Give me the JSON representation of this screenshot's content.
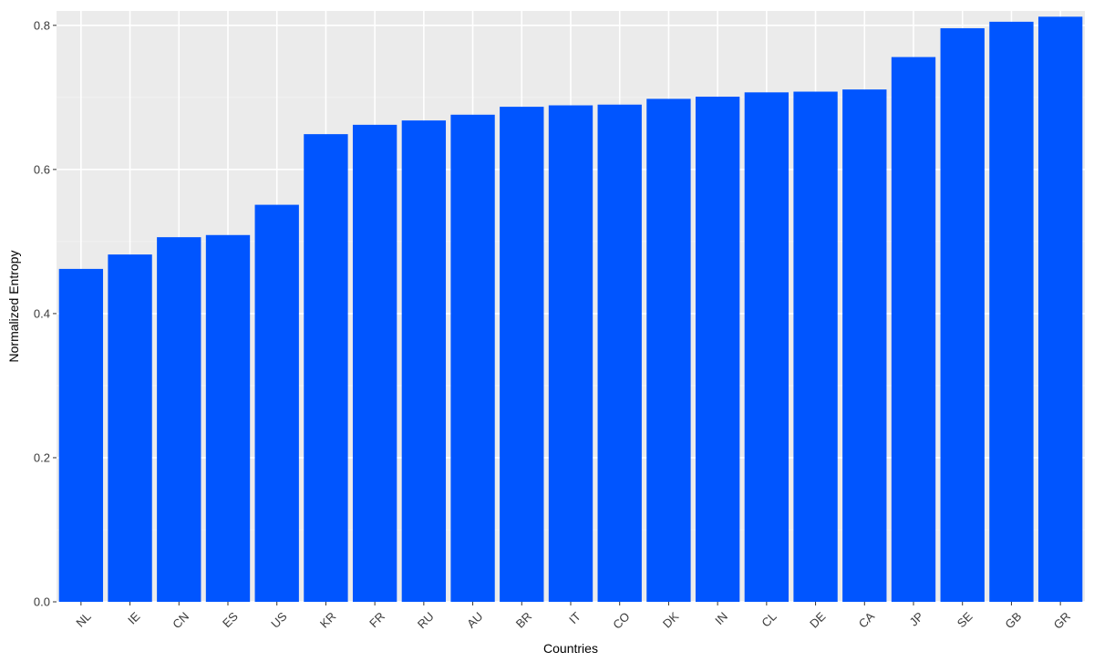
{
  "chart_data": {
    "type": "bar",
    "title": "",
    "xlabel": "Countries",
    "ylabel": "Normalized Entropy",
    "categories": [
      "NL",
      "IE",
      "CN",
      "ES",
      "US",
      "KR",
      "FR",
      "RU",
      "AU",
      "BR",
      "IT",
      "CO",
      "DK",
      "IN",
      "CL",
      "DE",
      "CA",
      "JP",
      "SE",
      "GB",
      "GR"
    ],
    "values": [
      0.462,
      0.482,
      0.506,
      0.509,
      0.551,
      0.649,
      0.662,
      0.668,
      0.676,
      0.687,
      0.689,
      0.69,
      0.698,
      0.701,
      0.707,
      0.708,
      0.711,
      0.756,
      0.796,
      0.805,
      0.812
    ],
    "ylim": [
      0,
      0.82
    ],
    "yticks": [
      0.0,
      0.2,
      0.4,
      0.6,
      0.8
    ],
    "ytick_labels": [
      "0.0",
      "0.2",
      "0.4",
      "0.6",
      "0.8"
    ],
    "grid": true,
    "legend": "none",
    "colors": {
      "bar": "#0055FF",
      "panel_background": "#EBEBEB",
      "grid_major": "#FFFFFF",
      "grid_minor": "#F4F4F4"
    }
  }
}
